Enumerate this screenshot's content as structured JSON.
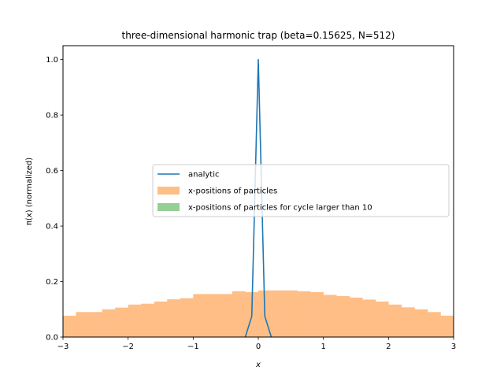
{
  "chart_data": {
    "type": "bar",
    "title": "three-dimensional harmonic trap (beta=0.15625, N=512)",
    "xlabel": "x",
    "ylabel": "π(x) (normalized)",
    "xlim": [
      -3,
      3
    ],
    "ylim": [
      0,
      1.05
    ],
    "x_ticks": [
      -3,
      -2,
      -1,
      0,
      1,
      2,
      3
    ],
    "x_tick_labels": [
      "−3",
      "−2",
      "−1",
      "0",
      "1",
      "2",
      "3"
    ],
    "y_ticks": [
      0,
      0.2,
      0.4,
      0.6,
      0.8,
      1.0
    ],
    "y_tick_labels": [
      "0.0",
      "0.2",
      "0.4",
      "0.6",
      "0.8",
      "1.0"
    ],
    "grid": false,
    "legend_position": "center-right",
    "series": [
      {
        "name": "analytic",
        "kind": "line",
        "color": "#1f77b4",
        "x": [
          -0.2,
          -0.1,
          0.0,
          0.1,
          0.2
        ],
        "y": [
          0.0,
          0.075,
          1.0,
          0.075,
          0.0
        ]
      },
      {
        "name": "x-positions of particles",
        "kind": "histogram",
        "color": "#ffbe86",
        "bin_edges": [
          -3.0,
          -2.8,
          -2.6,
          -2.4,
          -2.2,
          -2.0,
          -1.8,
          -1.6,
          -1.4,
          -1.2,
          -1.0,
          -0.8,
          -0.6,
          -0.4,
          -0.2,
          0.0,
          0.2,
          0.4,
          0.6,
          0.8,
          1.0,
          1.2,
          1.4,
          1.6,
          1.8,
          2.0,
          2.2,
          2.4,
          2.6,
          2.8,
          3.0
        ],
        "values": [
          0.077,
          0.09,
          0.09,
          0.1,
          0.106,
          0.117,
          0.12,
          0.128,
          0.136,
          0.14,
          0.155,
          0.155,
          0.155,
          0.165,
          0.162,
          0.168,
          0.168,
          0.168,
          0.165,
          0.162,
          0.152,
          0.148,
          0.142,
          0.135,
          0.128,
          0.117,
          0.107,
          0.1,
          0.09,
          0.077
        ]
      },
      {
        "name": "x-positions of particles for cycle larger than 10",
        "kind": "histogram",
        "color": "#95cf95",
        "bin_edges": [],
        "values": []
      }
    ]
  }
}
